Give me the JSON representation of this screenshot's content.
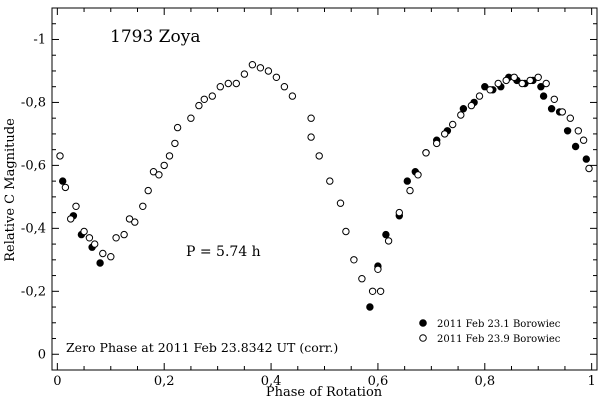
{
  "chart_data": {
    "type": "scatter",
    "title": "1793 Zoya",
    "xlabel": "Phase of Rotation",
    "ylabel": "Relative C Magnitude",
    "xlim": [
      -0.01,
      1.01
    ],
    "ylim": [
      0.05,
      -1.1
    ],
    "y_inverted": true,
    "x_ticks": [
      0,
      0.2,
      0.4,
      0.6,
      0.8,
      1
    ],
    "x_tick_labels": [
      "0",
      "0,2",
      "0,4",
      "0,6",
      "0,8",
      "1"
    ],
    "y_ticks": [
      0,
      -0.2,
      -0.4,
      -0.6,
      -0.8,
      -1
    ],
    "y_tick_labels": [
      "0",
      "-0,2",
      "-0,4",
      "-0,6",
      "-0,8",
      "-1"
    ],
    "annotation_period": "P = 5.74 h",
    "annotation_zero_phase": "Zero Phase at 2011 Feb 23.8342 UT (corr.)",
    "legend_position": "bottom-right",
    "series": [
      {
        "name": "2011 Feb 23.1 Borowiec",
        "marker": "filled-circle",
        "points": [
          [
            0.01,
            -0.55
          ],
          [
            0.03,
            -0.44
          ],
          [
            0.045,
            -0.38
          ],
          [
            0.065,
            -0.34
          ],
          [
            0.08,
            -0.29
          ],
          [
            0.585,
            -0.15
          ],
          [
            0.6,
            -0.28
          ],
          [
            0.615,
            -0.38
          ],
          [
            0.64,
            -0.44
          ],
          [
            0.655,
            -0.55
          ],
          [
            0.67,
            -0.58
          ],
          [
            0.69,
            -0.64
          ],
          [
            0.71,
            -0.68
          ],
          [
            0.73,
            -0.71
          ],
          [
            0.76,
            -0.78
          ],
          [
            0.78,
            -0.8
          ],
          [
            0.8,
            -0.85
          ],
          [
            0.815,
            -0.84
          ],
          [
            0.83,
            -0.85
          ],
          [
            0.845,
            -0.88
          ],
          [
            0.86,
            -0.87
          ],
          [
            0.875,
            -0.86
          ],
          [
            0.89,
            -0.87
          ],
          [
            0.905,
            -0.85
          ],
          [
            0.91,
            -0.82
          ],
          [
            0.925,
            -0.78
          ],
          [
            0.94,
            -0.77
          ],
          [
            0.955,
            -0.71
          ],
          [
            0.97,
            -0.66
          ],
          [
            0.99,
            -0.62
          ]
        ]
      },
      {
        "name": "2011 Feb 23.9 Borowiec",
        "marker": "open-circle",
        "points": [
          [
            0.005,
            -0.63
          ],
          [
            0.015,
            -0.53
          ],
          [
            0.025,
            -0.43
          ],
          [
            0.035,
            -0.47
          ],
          [
            0.05,
            -0.39
          ],
          [
            0.06,
            -0.37
          ],
          [
            0.07,
            -0.35
          ],
          [
            0.085,
            -0.32
          ],
          [
            0.1,
            -0.31
          ],
          [
            0.11,
            -0.37
          ],
          [
            0.125,
            -0.38
          ],
          [
            0.135,
            -0.43
          ],
          [
            0.145,
            -0.42
          ],
          [
            0.16,
            -0.47
          ],
          [
            0.17,
            -0.52
          ],
          [
            0.18,
            -0.58
          ],
          [
            0.19,
            -0.57
          ],
          [
            0.2,
            -0.6
          ],
          [
            0.21,
            -0.63
          ],
          [
            0.22,
            -0.67
          ],
          [
            0.225,
            -0.72
          ],
          [
            0.25,
            -0.75
          ],
          [
            0.265,
            -0.79
          ],
          [
            0.275,
            -0.81
          ],
          [
            0.29,
            -0.82
          ],
          [
            0.305,
            -0.85
          ],
          [
            0.32,
            -0.86
          ],
          [
            0.335,
            -0.86
          ],
          [
            0.35,
            -0.89
          ],
          [
            0.365,
            -0.92
          ],
          [
            0.38,
            -0.91
          ],
          [
            0.395,
            -0.9
          ],
          [
            0.41,
            -0.88
          ],
          [
            0.425,
            -0.85
          ],
          [
            0.44,
            -0.82
          ],
          [
            0.475,
            -0.75
          ],
          [
            0.475,
            -0.69
          ],
          [
            0.49,
            -0.63
          ],
          [
            0.51,
            -0.55
          ],
          [
            0.53,
            -0.48
          ],
          [
            0.54,
            -0.39
          ],
          [
            0.555,
            -0.3
          ],
          [
            0.57,
            -0.24
          ],
          [
            0.59,
            -0.2
          ],
          [
            0.6,
            -0.27
          ],
          [
            0.605,
            -0.2
          ],
          [
            0.62,
            -0.36
          ],
          [
            0.64,
            -0.45
          ],
          [
            0.66,
            -0.52
          ],
          [
            0.675,
            -0.57
          ],
          [
            0.69,
            -0.64
          ],
          [
            0.71,
            -0.67
          ],
          [
            0.725,
            -0.7
          ],
          [
            0.74,
            -0.73
          ],
          [
            0.755,
            -0.76
          ],
          [
            0.775,
            -0.79
          ],
          [
            0.79,
            -0.82
          ],
          [
            0.81,
            -0.84
          ],
          [
            0.825,
            -0.86
          ],
          [
            0.84,
            -0.87
          ],
          [
            0.855,
            -0.88
          ],
          [
            0.87,
            -0.86
          ],
          [
            0.885,
            -0.87
          ],
          [
            0.9,
            -0.88
          ],
          [
            0.915,
            -0.86
          ],
          [
            0.93,
            -0.81
          ],
          [
            0.945,
            -0.77
          ],
          [
            0.96,
            -0.75
          ],
          [
            0.975,
            -0.71
          ],
          [
            0.985,
            -0.68
          ],
          [
            0.995,
            -0.59
          ]
        ]
      }
    ]
  }
}
